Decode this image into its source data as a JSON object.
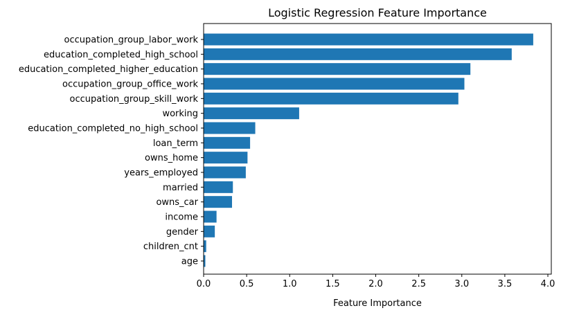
{
  "chart_data": {
    "type": "bar",
    "orientation": "horizontal",
    "title": "Logistic Regression Feature Importance",
    "xlabel": "Feature Importance",
    "ylabel": "",
    "xlim": [
      0,
      4.04
    ],
    "xticks": [
      0.0,
      0.5,
      1.0,
      1.5,
      2.0,
      2.5,
      3.0,
      3.5,
      4.0
    ],
    "xtick_labels": [
      "0.0",
      "0.5",
      "1.0",
      "1.5",
      "2.0",
      "2.5",
      "3.0",
      "3.5",
      "4.0"
    ],
    "grid": false,
    "bar_color": "#1f77b4",
    "categories": [
      "occupation_group_labor_work",
      "education_completed_high_school",
      "education_completed_higher_education",
      "occupation_group_office_work",
      "occupation_group_skill_work",
      "working",
      "education_completed_no_high_school",
      "loan_term",
      "owns_home",
      "years_employed",
      "married",
      "owns_car",
      "income",
      "gender",
      "children_cnt",
      "age"
    ],
    "values": [
      3.83,
      3.58,
      3.1,
      3.03,
      2.96,
      1.11,
      0.6,
      0.54,
      0.51,
      0.49,
      0.34,
      0.33,
      0.15,
      0.13,
      0.03,
      0.02
    ]
  }
}
